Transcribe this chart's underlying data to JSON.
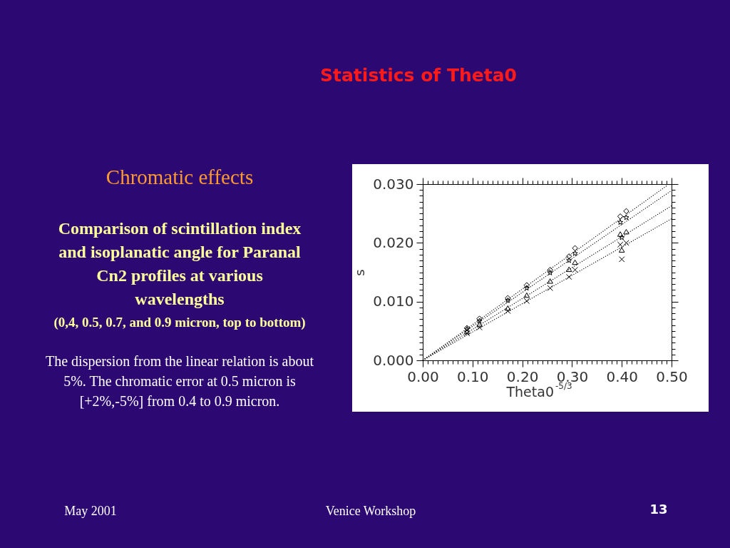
{
  "chart_data": {
    "type": "scatter",
    "title": "Statistics of  Theta0",
    "subtitle": "Chromatic effects",
    "annotations": [
      "Comparison of scintillation index and isoplanatic angle for Paranal Cn2 profiles at various wavelengths",
      "(0,4, 0.5, 0.7, and 0.9 micron, top to bottom)",
      "The dispersion from the linear relation is about 5%. The chromatic error at 0.5 micron is [+2%,-5%] from 0.4 to 0.9 micron.",
      "May 2001",
      "Venice Workshop",
      "13"
    ],
    "xlabel": "Theta0$^{-5/3}$",
    "ylabel": "s",
    "xlim": [
      0,
      0.5
    ],
    "ylim": [
      0,
      0.03
    ],
    "xticks": [
      {
        "value": 0,
        "label": "0.00"
      },
      {
        "value": 0.01,
        "label": null
      },
      {
        "value": 0.02,
        "label": null
      },
      {
        "value": 0.03,
        "label": null
      },
      {
        "value": 0.04,
        "label": null
      },
      {
        "value": 0.05,
        "label": null
      },
      {
        "value": 0.06,
        "label": null
      },
      {
        "value": 0.07,
        "label": null
      },
      {
        "value": 0.08,
        "label": null
      },
      {
        "value": 0.09,
        "label": null
      },
      {
        "value": 0.1,
        "label": "0.10"
      },
      {
        "value": 0.11,
        "label": null
      },
      {
        "value": 0.12,
        "label": null
      },
      {
        "value": 0.13,
        "label": null
      },
      {
        "value": 0.14,
        "label": null
      },
      {
        "value": 0.15,
        "label": null
      },
      {
        "value": 0.16,
        "label": null
      },
      {
        "value": 0.17,
        "label": null
      },
      {
        "value": 0.18,
        "label": null
      },
      {
        "value": 0.19,
        "label": null
      },
      {
        "value": 0.2,
        "label": "0.20"
      },
      {
        "value": 0.21,
        "label": null
      },
      {
        "value": 0.22,
        "label": null
      },
      {
        "value": 0.23,
        "label": null
      },
      {
        "value": 0.24,
        "label": null
      },
      {
        "value": 0.25,
        "label": null
      },
      {
        "value": 0.26,
        "label": null
      },
      {
        "value": 0.27,
        "label": null
      },
      {
        "value": 0.28,
        "label": null
      },
      {
        "value": 0.29,
        "label": null
      },
      {
        "value": 0.3,
        "label": "0.30"
      },
      {
        "value": 0.31,
        "label": null
      },
      {
        "value": 0.32,
        "label": null
      },
      {
        "value": 0.33,
        "label": null
      },
      {
        "value": 0.34,
        "label": null
      },
      {
        "value": 0.35,
        "label": null
      },
      {
        "value": 0.36,
        "label": null
      },
      {
        "value": 0.37,
        "label": null
      },
      {
        "value": 0.38,
        "label": null
      },
      {
        "value": 0.39,
        "label": null
      },
      {
        "value": 0.4,
        "label": "0.40"
      },
      {
        "value": 0.41,
        "label": null
      },
      {
        "value": 0.42,
        "label": null
      },
      {
        "value": 0.43,
        "label": null
      },
      {
        "value": 0.44,
        "label": null
      },
      {
        "value": 0.45,
        "label": null
      },
      {
        "value": 0.46,
        "label": null
      },
      {
        "value": 0.47,
        "label": null
      },
      {
        "value": 0.48,
        "label": null
      },
      {
        "value": 0.49,
        "label": null
      },
      {
        "value": 0.5,
        "label": "0.50"
      }
    ],
    "yticks": [
      {
        "value": 0,
        "label": "0.000"
      },
      {
        "value": 0.001,
        "label": null
      },
      {
        "value": 0.002,
        "label": null
      },
      {
        "value": 0.003,
        "label": null
      },
      {
        "value": 0.004,
        "label": null
      },
      {
        "value": 0.005,
        "label": null
      },
      {
        "value": 0.006,
        "label": null
      },
      {
        "value": 0.007,
        "label": null
      },
      {
        "value": 0.008,
        "label": null
      },
      {
        "value": 0.009,
        "label": null
      },
      {
        "value": 0.01,
        "label": "0.010"
      },
      {
        "value": 0.011,
        "label": null
      },
      {
        "value": 0.012,
        "label": null
      },
      {
        "value": 0.013,
        "label": null
      },
      {
        "value": 0.014,
        "label": null
      },
      {
        "value": 0.015,
        "label": null
      },
      {
        "value": 0.016,
        "label": null
      },
      {
        "value": 0.017,
        "label": null
      },
      {
        "value": 0.018,
        "label": null
      },
      {
        "value": 0.019,
        "label": null
      },
      {
        "value": 0.02,
        "label": "0.020"
      },
      {
        "value": 0.021,
        "label": null
      },
      {
        "value": 0.022,
        "label": null
      },
      {
        "value": 0.023,
        "label": null
      },
      {
        "value": 0.024,
        "label": null
      },
      {
        "value": 0.025,
        "label": null
      },
      {
        "value": 0.026,
        "label": null
      },
      {
        "value": 0.027,
        "label": null
      },
      {
        "value": 0.028,
        "label": null
      },
      {
        "value": 0.029,
        "label": null
      },
      {
        "value": 0.03,
        "label": "0.030"
      }
    ],
    "series": [
      {
        "marker": "diamond",
        "color": "#000000",
        "x": [
          0.089,
          0.114,
          0.171,
          0.209,
          0.256,
          0.294,
          0.306,
          0.397,
          0.409
        ],
        "values": [
          0.0055,
          0.0071,
          0.0106,
          0.0128,
          0.0154,
          0.0177,
          0.0191,
          0.0245,
          0.0254
        ]
      },
      {
        "marker": "star",
        "color": "#000000",
        "x": [
          0.089,
          0.114,
          0.171,
          0.209,
          0.256,
          0.294,
          0.306,
          0.397,
          0.4,
          0.409
        ],
        "values": [
          0.0053,
          0.0067,
          0.0102,
          0.0123,
          0.0149,
          0.017,
          0.0182,
          0.0235,
          0.0209,
          0.0243
        ]
      },
      {
        "marker": "triangle",
        "color": "#000000",
        "x": [
          0.089,
          0.114,
          0.171,
          0.209,
          0.256,
          0.294,
          0.306,
          0.397,
          0.4,
          0.409
        ],
        "values": [
          0.0049,
          0.0061,
          0.0089,
          0.0111,
          0.0135,
          0.0155,
          0.0167,
          0.0215,
          0.0188,
          0.0219
        ]
      },
      {
        "marker": "cross",
        "color": "#000000",
        "x": [
          0.089,
          0.114,
          0.171,
          0.209,
          0.256,
          0.294,
          0.306,
          0.397,
          0.4,
          0.409
        ],
        "values": [
          0.0046,
          0.0056,
          0.0084,
          0.0101,
          0.0123,
          0.0142,
          0.0154,
          0.0197,
          0.0172,
          0.02
        ]
      },
      {
        "type": "line",
        "line_style": "dotted",
        "color": "#000000",
        "x": [
          0,
          0.49
        ],
        "values": [
          0,
          0.0297
        ]
      },
      {
        "type": "line",
        "line_style": "dotted",
        "color": "#000000",
        "x": [
          0,
          0.5
        ],
        "values": [
          0,
          0.0289
        ]
      },
      {
        "type": "line",
        "line_style": "dotted",
        "color": "#000000",
        "x": [
          0,
          0.5
        ],
        "values": [
          0,
          0.0263
        ]
      },
      {
        "type": "line",
        "line_style": "dotted",
        "color": "#000000",
        "x": [
          0,
          0.5
        ],
        "values": [
          0,
          0.0241
        ]
      }
    ]
  }
}
